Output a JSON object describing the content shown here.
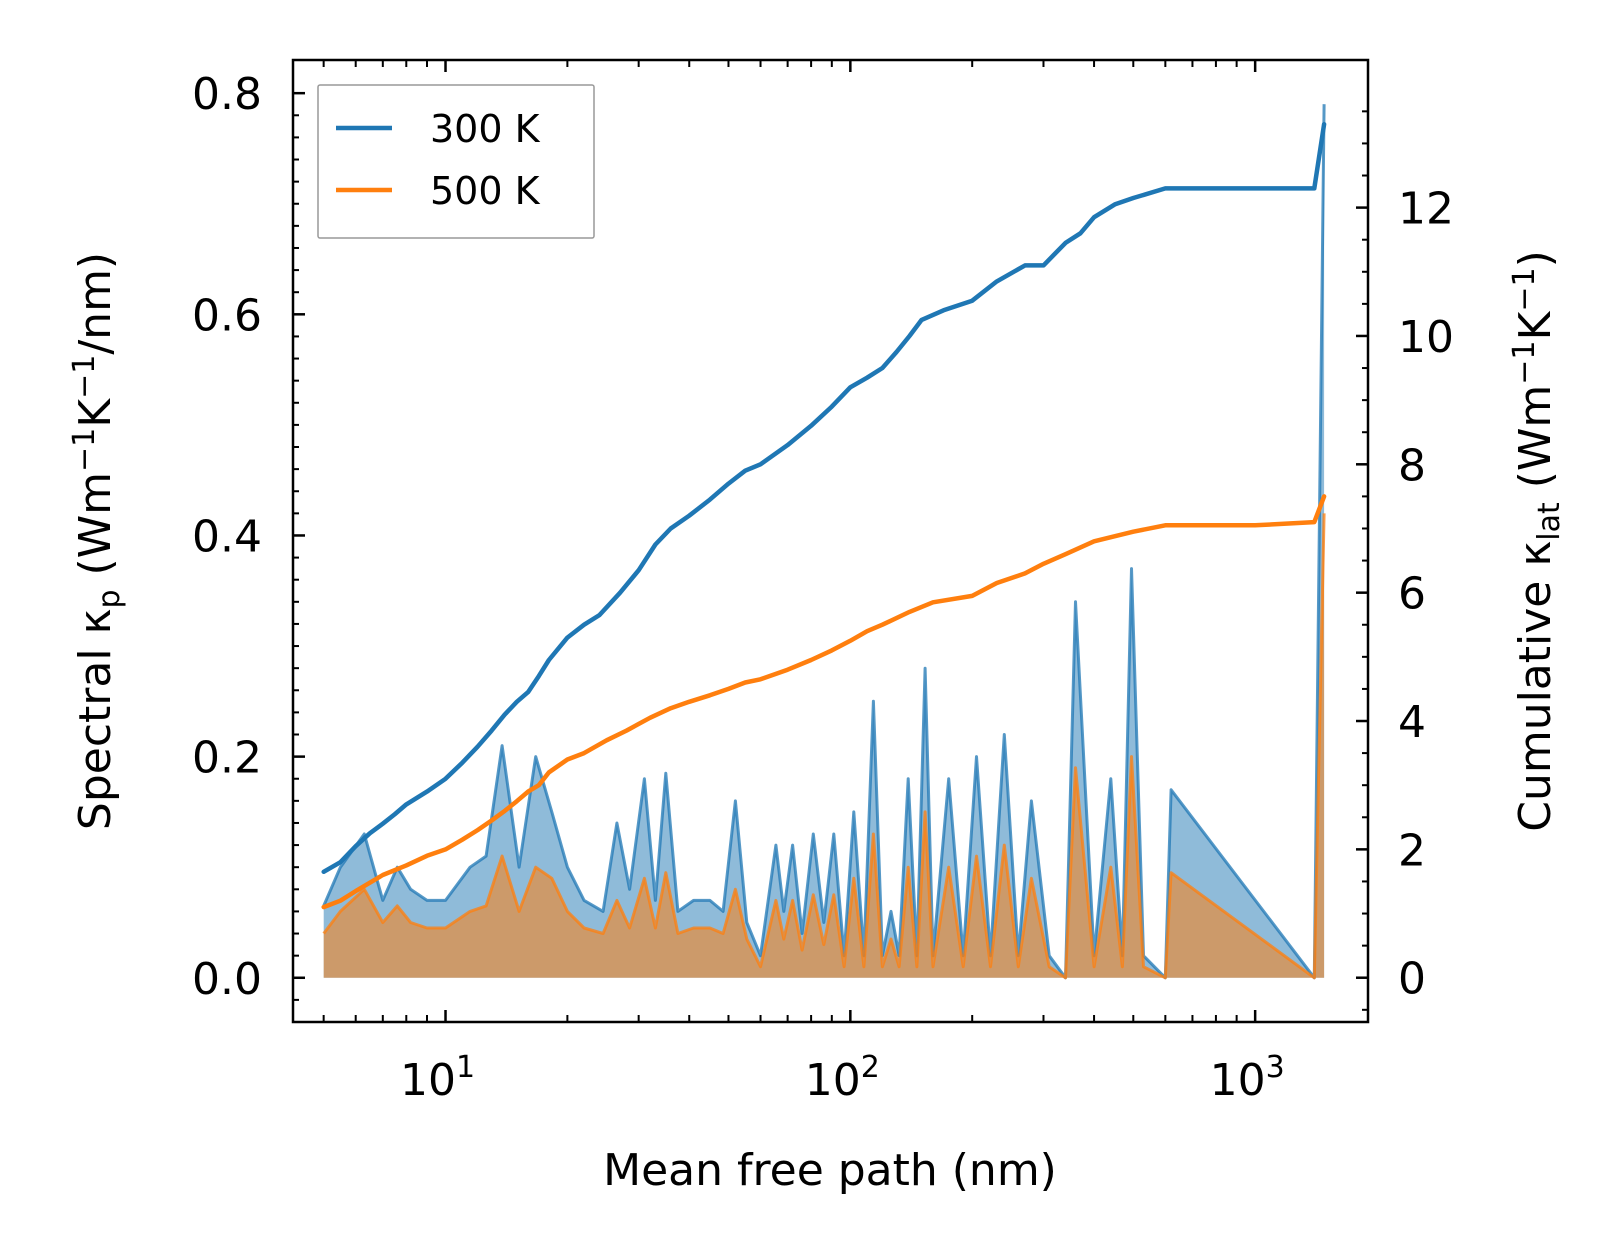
{
  "chart_data": {
    "type": "line",
    "x_scale": "log",
    "xlabel": "Mean free path (nm)",
    "ylabel_left": "Spectral κp (Wm−1K−1/nm)",
    "ylabel_left_parts": [
      "Spectral κ",
      "p",
      " (Wm",
      "−1",
      "K",
      "−1",
      "/nm)"
    ],
    "ylabel_right": "Cumulative κlat (Wm−1K−1)",
    "ylabel_right_parts": [
      "Cumulative κ",
      "lat",
      " (Wm",
      "−1",
      "K",
      "−1",
      ")"
    ],
    "xlim": [
      4.2,
      1900
    ],
    "ylim_left": [
      -0.04,
      0.83
    ],
    "ylim_right": [
      -0.69,
      14.3
    ],
    "x_ticks": [
      {
        "value": 10,
        "base": "10",
        "exp": "1"
      },
      {
        "value": 100,
        "base": "10",
        "exp": "2"
      },
      {
        "value": 1000,
        "base": "10",
        "exp": "3"
      }
    ],
    "y_left_ticks": [
      {
        "value": 0.0,
        "label": "0.0"
      },
      {
        "value": 0.2,
        "label": "0.2"
      },
      {
        "value": 0.4,
        "label": "0.4"
      },
      {
        "value": 0.6,
        "label": "0.6"
      },
      {
        "value": 0.8,
        "label": "0.8"
      }
    ],
    "y_right_ticks": [
      {
        "value": 0,
        "label": "0"
      },
      {
        "value": 2,
        "label": "2"
      },
      {
        "value": 4,
        "label": "4"
      },
      {
        "value": 6,
        "label": "6"
      },
      {
        "value": 8,
        "label": "8"
      },
      {
        "value": 10,
        "label": "10"
      },
      {
        "value": 12,
        "label": "12"
      }
    ],
    "legend": {
      "location": "upper-left",
      "entries": [
        "300 K",
        "500 K"
      ]
    },
    "series": [
      {
        "name": "300 K",
        "color": "#1f77b4",
        "cumulative": {
          "x": [
            5,
            5.5,
            6,
            6.5,
            7,
            7.5,
            8,
            9,
            10,
            11,
            12,
            13,
            14,
            15,
            16,
            17,
            18,
            20,
            22,
            24,
            27,
            30,
            33,
            36,
            40,
            45,
            50,
            55,
            60,
            70,
            80,
            90,
            100,
            110,
            120,
            130,
            140,
            150,
            170,
            200,
            230,
            270,
            300,
            340,
            370,
            400,
            450,
            500,
            600,
            800,
            1000,
            1200,
            1400,
            1480
          ],
          "y": [
            1.65,
            1.8,
            2.05,
            2.25,
            2.4,
            2.55,
            2.7,
            2.9,
            3.1,
            3.35,
            3.6,
            3.85,
            4.1,
            4.3,
            4.45,
            4.7,
            4.95,
            5.3,
            5.5,
            5.65,
            6.0,
            6.35,
            6.75,
            7.0,
            7.2,
            7.45,
            7.7,
            7.9,
            8.0,
            8.3,
            8.6,
            8.9,
            9.2,
            9.35,
            9.5,
            9.75,
            10.0,
            10.25,
            10.4,
            10.55,
            10.85,
            11.1,
            11.1,
            11.45,
            11.6,
            11.85,
            12.05,
            12.15,
            12.3,
            12.3,
            12.3,
            12.3,
            12.3,
            13.3
          ]
        },
        "spectral": {
          "x": [
            5,
            5.5,
            6.3,
            7,
            7.6,
            8.2,
            9,
            10,
            11.5,
            12.6,
            13.8,
            15.2,
            16.7,
            18.3,
            20,
            22,
            24.5,
            26.5,
            28.5,
            31,
            33,
            35,
            37.5,
            41,
            45,
            48.5,
            52,
            55.5,
            60,
            65.5,
            68.5,
            72,
            76,
            81,
            86,
            91,
            96.5,
            102,
            108,
            114,
            120,
            126,
            132,
            139,
            146,
            153,
            160,
            175,
            190,
            205,
            222,
            240,
            260,
            280,
            310,
            340,
            360,
            400,
            440,
            470,
            495,
            530,
            600,
            620,
            1400,
            1480
          ],
          "y": [
            0.065,
            0.1,
            0.13,
            0.07,
            0.1,
            0.08,
            0.07,
            0.07,
            0.1,
            0.11,
            0.21,
            0.1,
            0.2,
            0.15,
            0.1,
            0.07,
            0.06,
            0.14,
            0.08,
            0.18,
            0.07,
            0.185,
            0.06,
            0.07,
            0.07,
            0.06,
            0.16,
            0.05,
            0.02,
            0.12,
            0.06,
            0.12,
            0.04,
            0.13,
            0.05,
            0.13,
            0.02,
            0.15,
            0.02,
            0.25,
            0.02,
            0.06,
            0.02,
            0.18,
            0.02,
            0.28,
            0.02,
            0.18,
            0.02,
            0.2,
            0.02,
            0.22,
            0.02,
            0.16,
            0.02,
            0.0,
            0.34,
            0.02,
            0.18,
            0.02,
            0.37,
            0.02,
            0.0,
            0.17,
            0.0,
            0.79
          ]
        }
      },
      {
        "name": "500 K",
        "color": "#ff7f0e",
        "cumulative": {
          "x": [
            5,
            5.5,
            6,
            7,
            8,
            9,
            10,
            11,
            12,
            13,
            14,
            15,
            16,
            17,
            18,
            20,
            22,
            25,
            28,
            32,
            36,
            40,
            45,
            50,
            55,
            60,
            70,
            80,
            90,
            100,
            110,
            120,
            140,
            160,
            200,
            230,
            270,
            300,
            340,
            400,
            500,
            600,
            800,
            1000,
            1400,
            1480
          ],
          "y": [
            1.1,
            1.2,
            1.35,
            1.6,
            1.75,
            1.9,
            2.0,
            2.15,
            2.3,
            2.45,
            2.6,
            2.75,
            2.9,
            3.0,
            3.2,
            3.4,
            3.5,
            3.7,
            3.85,
            4.05,
            4.2,
            4.3,
            4.4,
            4.5,
            4.6,
            4.65,
            4.8,
            4.95,
            5.1,
            5.25,
            5.4,
            5.5,
            5.7,
            5.85,
            5.95,
            6.15,
            6.3,
            6.45,
            6.6,
            6.8,
            6.95,
            7.05,
            7.05,
            7.05,
            7.1,
            7.5
          ]
        },
        "spectral": {
          "x": [
            5,
            5.5,
            6.3,
            7,
            7.6,
            8.2,
            9,
            10,
            11.5,
            12.6,
            13.8,
            15.2,
            16.7,
            18.3,
            20,
            22,
            24.5,
            26.5,
            28.5,
            31,
            33,
            35,
            37.5,
            41,
            45,
            48.5,
            52,
            55.5,
            60,
            65.5,
            68.5,
            72,
            76,
            81,
            86,
            91,
            96.5,
            102,
            108,
            114,
            120,
            126,
            132,
            139,
            146,
            153,
            160,
            175,
            190,
            205,
            222,
            240,
            260,
            280,
            310,
            340,
            360,
            400,
            440,
            470,
            495,
            530,
            600,
            620,
            1400,
            1480
          ],
          "y": [
            0.04,
            0.06,
            0.08,
            0.05,
            0.065,
            0.05,
            0.045,
            0.045,
            0.06,
            0.065,
            0.11,
            0.06,
            0.1,
            0.09,
            0.06,
            0.045,
            0.04,
            0.07,
            0.045,
            0.09,
            0.045,
            0.095,
            0.04,
            0.045,
            0.045,
            0.04,
            0.08,
            0.035,
            0.01,
            0.07,
            0.035,
            0.07,
            0.025,
            0.075,
            0.03,
            0.075,
            0.01,
            0.09,
            0.01,
            0.13,
            0.01,
            0.035,
            0.01,
            0.1,
            0.01,
            0.15,
            0.01,
            0.1,
            0.01,
            0.11,
            0.01,
            0.12,
            0.01,
            0.09,
            0.01,
            0.0,
            0.19,
            0.01,
            0.1,
            0.01,
            0.2,
            0.01,
            0.0,
            0.095,
            0.0,
            0.42
          ]
        }
      }
    ]
  }
}
